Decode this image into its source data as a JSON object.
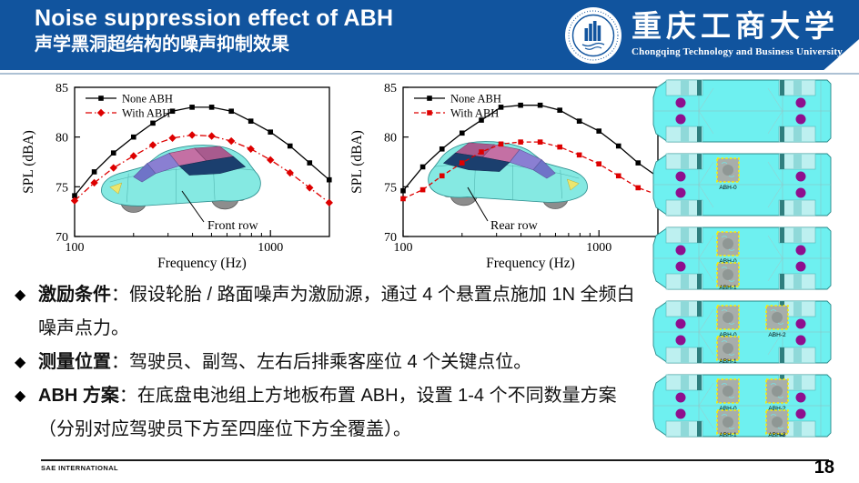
{
  "header": {
    "title_en": "Noise suppression effect of ABH",
    "title_zh": "声学黑洞超结构的噪声抑制效果",
    "bg_color": "#11549e",
    "logo": {
      "university_zh": "重庆工商大学",
      "university_en": "Chongqing Technology and Business University"
    }
  },
  "icons": {
    "bullet_diamond": "◆"
  },
  "chart_data": [
    {
      "type": "line",
      "name": "front-row-spl",
      "xlabel": "Frequency (Hz)",
      "ylabel": "SPL (dBA)",
      "xscale": "log",
      "xlim": [
        100,
        2000
      ],
      "ylim": [
        70,
        85
      ],
      "yticks": [
        70,
        75,
        80,
        85
      ],
      "xticks": [
        100,
        1000
      ],
      "grid": false,
      "legend_position": "top-left",
      "annotation": "Front row",
      "x": [
        100,
        126,
        158,
        200,
        251,
        316,
        398,
        501,
        631,
        794,
        1000,
        1259,
        1585,
        1995
      ],
      "series": [
        {
          "name": "None ABH",
          "color": "#000000",
          "marker": "square",
          "line": "solid",
          "values": [
            74.1,
            76.5,
            78.4,
            80.0,
            81.4,
            82.6,
            83.0,
            83.0,
            82.6,
            81.6,
            80.5,
            79.1,
            77.4,
            75.7
          ]
        },
        {
          "name": "With ABH",
          "color": "#dd0000",
          "marker": "diamond",
          "line": "dashdot",
          "values": [
            73.6,
            75.4,
            76.9,
            78.1,
            79.2,
            79.9,
            80.2,
            80.1,
            79.6,
            78.8,
            77.7,
            76.4,
            74.9,
            73.4
          ]
        }
      ]
    },
    {
      "type": "line",
      "name": "rear-row-spl",
      "xlabel": "Frequency (Hz)",
      "ylabel": "SPL (dBA)",
      "xscale": "log",
      "xlim": [
        100,
        2000
      ],
      "ylim": [
        70,
        85
      ],
      "yticks": [
        70,
        75,
        80,
        85
      ],
      "xticks": [
        100,
        1000
      ],
      "grid": false,
      "legend_position": "top-left",
      "annotation": "Rear row",
      "x": [
        100,
        126,
        158,
        200,
        251,
        316,
        398,
        501,
        631,
        794,
        1000,
        1259,
        1585,
        1995
      ],
      "series": [
        {
          "name": "None ABH",
          "color": "#000000",
          "marker": "square",
          "line": "solid",
          "values": [
            74.6,
            77.0,
            78.8,
            80.4,
            81.7,
            83.0,
            83.2,
            83.2,
            82.7,
            81.6,
            80.6,
            79.1,
            77.4,
            76.0
          ]
        },
        {
          "name": "With ABH",
          "color": "#dd0000",
          "marker": "square",
          "line": "dashed",
          "values": [
            73.8,
            74.7,
            76.1,
            77.4,
            78.5,
            79.3,
            79.5,
            79.5,
            79.0,
            78.2,
            77.3,
            76.1,
            74.9,
            74.2
          ]
        }
      ]
    }
  ],
  "sidebar": {
    "colors": {
      "body": "#6ef0f0",
      "well": "#bdf0f0",
      "strip": "#2e7f7f",
      "dot": "#8e0f8e",
      "patch": "#a7aeab",
      "patch_border": "#ffee00"
    },
    "diagrams": [
      {
        "patches": []
      },
      {
        "patches": [
          {
            "label": "ABH-0",
            "col": 0,
            "row": 0
          }
        ]
      },
      {
        "patches": [
          {
            "label": "ABH-0",
            "col": 0,
            "row": 0
          },
          {
            "label": "ABH-1",
            "col": 0,
            "row": 1
          }
        ]
      },
      {
        "patches": [
          {
            "label": "ABH-0",
            "col": 0,
            "row": 0
          },
          {
            "label": "ABH-2",
            "col": 1,
            "row": 0
          },
          {
            "label": "ABH-1",
            "col": 0,
            "row": 1
          }
        ]
      },
      {
        "patches": [
          {
            "label": "ABH-0",
            "col": 0,
            "row": 0
          },
          {
            "label": "ABH-2",
            "col": 1,
            "row": 0
          },
          {
            "label": "ABH-1",
            "col": 0,
            "row": 1
          },
          {
            "label": "ABH-3",
            "col": 1,
            "row": 1
          }
        ]
      }
    ]
  },
  "bullets": [
    {
      "label": "激励条件",
      "text": "：假设轮胎 / 路面噪声为激励源，通过 4 个悬置点施加 1N 全频白噪声点力。"
    },
    {
      "label": "测量位置",
      "text": "：驾驶员、副驾、左右后排乘客座位 4 个关键点位。"
    },
    {
      "label": "ABH 方案",
      "text": "：在底盘电池组上方地板布置 ABH，设置 1-4 个不同数量方案（分别对应驾驶员下方至四座位下方全覆盖）。"
    }
  ],
  "footer": {
    "left": "SAE INTERNATIONAL",
    "page": "18"
  }
}
